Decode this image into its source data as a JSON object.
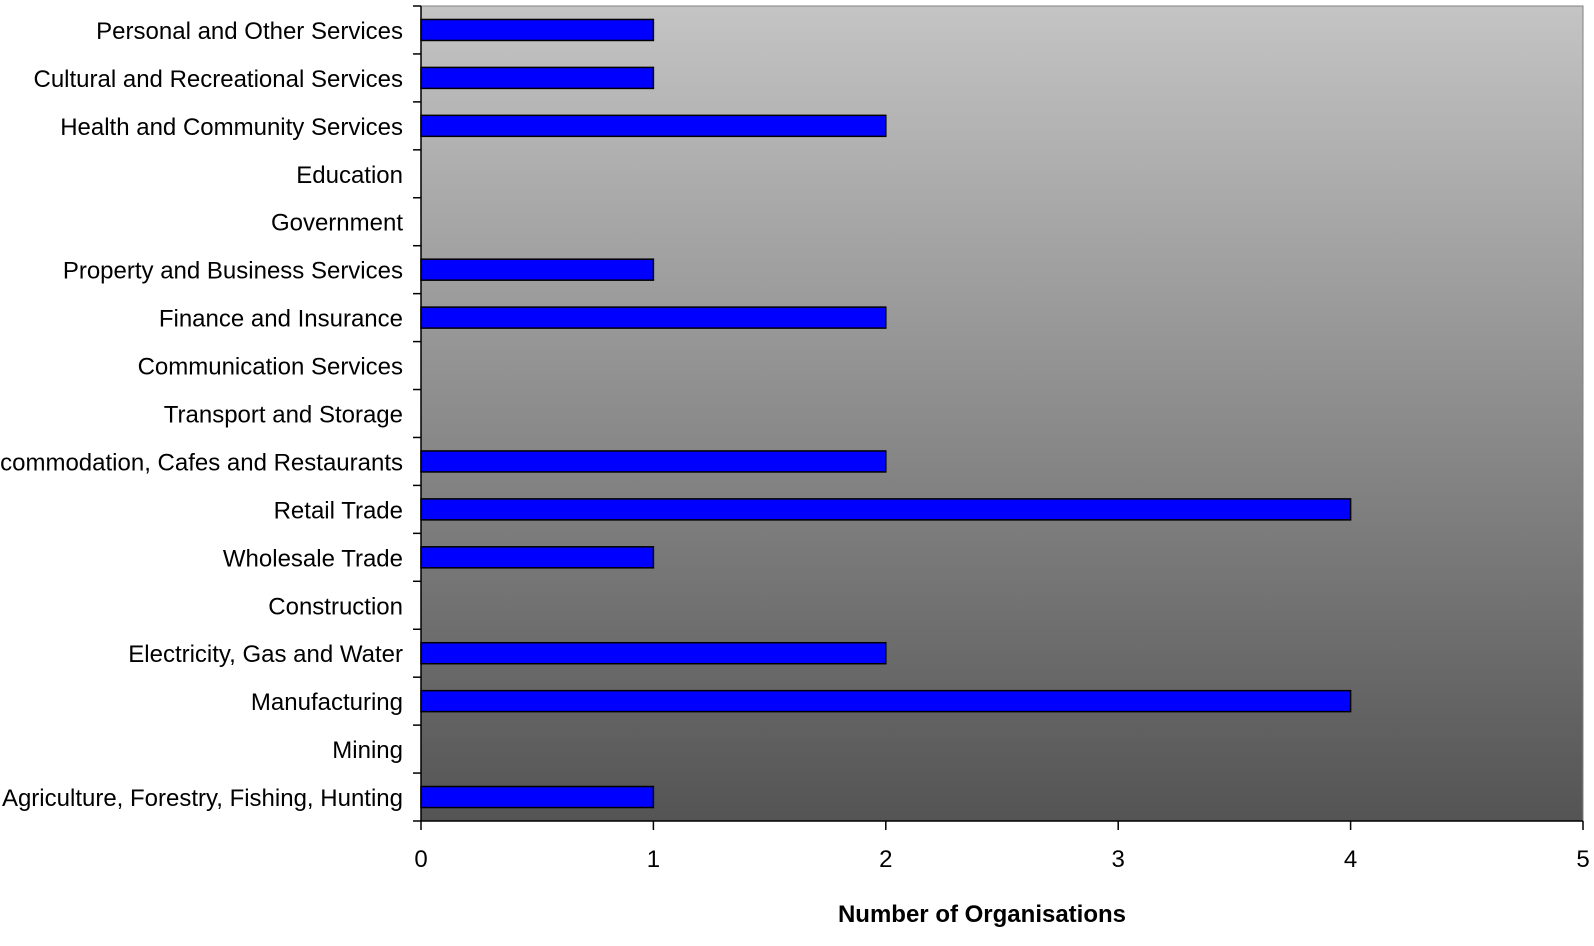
{
  "chart_data": {
    "type": "bar",
    "orientation": "horizontal",
    "categories": [
      "Personal and Other Services",
      "Cultural and Recreational Services",
      "Health and Community Services",
      "Education",
      "Government",
      "Property and Business Services",
      "Finance and Insurance",
      "Communication Services",
      "Transport and Storage",
      "Accommodation, Cafes and Restaurants",
      "Retail Trade",
      "Wholesale Trade",
      "Construction",
      "Electricity, Gas and Water",
      "Manufacturing",
      "Mining",
      "Agriculture, Forestry, Fishing, Hunting"
    ],
    "values": [
      1,
      1,
      2,
      0,
      0,
      1,
      2,
      0,
      0,
      2,
      4,
      1,
      0,
      2,
      4,
      0,
      1
    ],
    "xlabel": "Number of Organisations",
    "ylabel": "",
    "xlim": [
      0,
      5
    ],
    "xticks": [
      "0",
      "1",
      "2",
      "3",
      "4",
      "5"
    ],
    "grid": false,
    "legend": "none",
    "colors": {
      "bar_fill": "#0000FF",
      "bar_stroke": "#000000",
      "plot_bg_top": "#C4C4C4",
      "plot_bg_bottom": "#545454",
      "axis": "#000000"
    }
  }
}
